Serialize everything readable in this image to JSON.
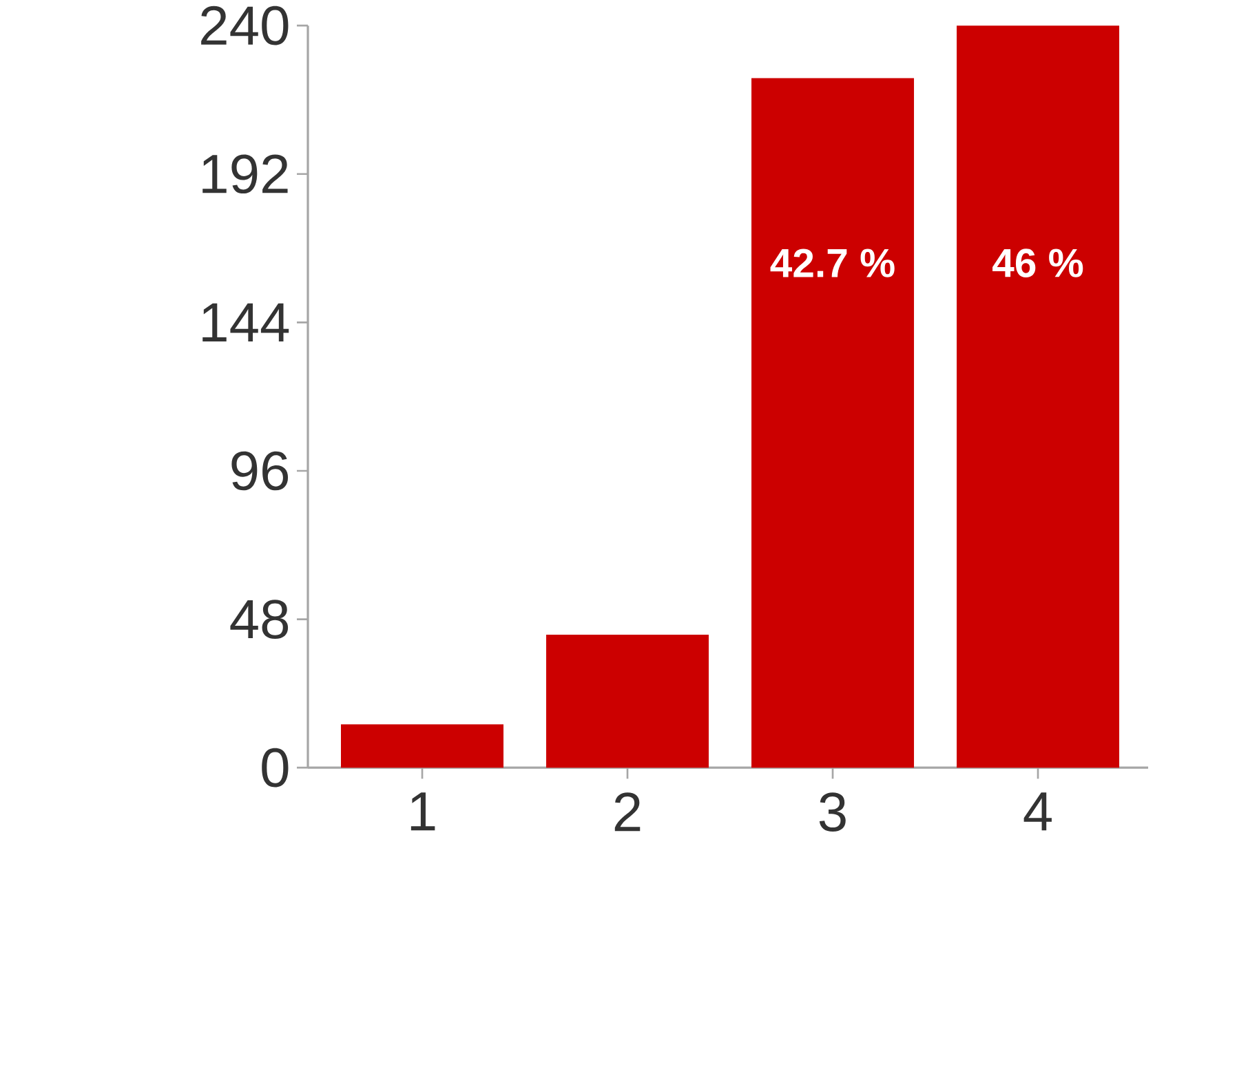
{
  "chart_data": {
    "type": "bar",
    "categories": [
      "1",
      "2",
      "3",
      "4"
    ],
    "values": [
      14,
      43,
      223,
      240
    ],
    "annotations": [
      "42.7 %",
      "46 %"
    ],
    "color": "#cc0000",
    "ylim": [
      0,
      240
    ],
    "yticks": [
      0,
      48,
      96,
      144,
      192,
      240
    ]
  }
}
